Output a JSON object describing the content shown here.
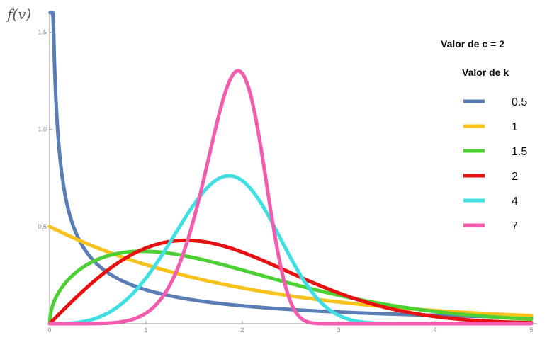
{
  "chart_data": {
    "type": "line",
    "title": "",
    "xlabel": "",
    "ylabel": "f(v)",
    "xlim": [
      0,
      5
    ],
    "ylim": [
      0,
      1.6
    ],
    "x_ticks": [
      "0",
      "1",
      "2",
      "3",
      "4",
      "5"
    ],
    "y_ticks": [
      "0.5",
      "1.0",
      "1.5"
    ],
    "grid": false,
    "legend_position": "right",
    "legend_title_1": "Valor de c = 2",
    "legend_title_2": "Valor de k",
    "scale_c": 2,
    "series": [
      {
        "name": "0.5",
        "k": 0.5,
        "color": "#5B7DB6"
      },
      {
        "name": "1",
        "k": 1,
        "color": "#F7C21B"
      },
      {
        "name": "1.5",
        "k": 1.5,
        "color": "#4CD033"
      },
      {
        "name": "2",
        "k": 2,
        "color": "#E81010"
      },
      {
        "name": "4",
        "k": 4,
        "color": "#3FE0E3"
      },
      {
        "name": "7",
        "k": 7,
        "color": "#F35BAE"
      }
    ]
  }
}
